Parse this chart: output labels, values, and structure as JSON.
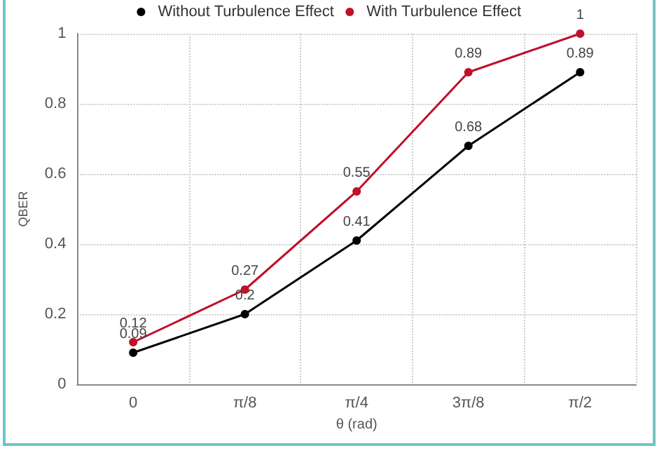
{
  "chart_data": {
    "type": "line",
    "xlabel": "θ (rad)",
    "ylabel": "QBER",
    "categories": [
      "0",
      "π/8",
      "π/4",
      "3π/8",
      "π/2"
    ],
    "series": [
      {
        "name": "Without Turbulence Effect",
        "color": "#000000",
        "values": [
          0.09,
          0.2,
          0.41,
          0.68,
          0.89
        ]
      },
      {
        "name": "With Turbulence Effect",
        "color": "#c0102a",
        "values": [
          0.12,
          0.27,
          0.55,
          0.89,
          1
        ]
      }
    ],
    "ylim": [
      0,
      1
    ],
    "yticks": [
      0,
      0.2,
      0.4,
      0.6,
      0.8,
      1
    ],
    "grid": true,
    "legend": "top",
    "marker": "circle",
    "line_style": "solid",
    "data_labels": true
  }
}
